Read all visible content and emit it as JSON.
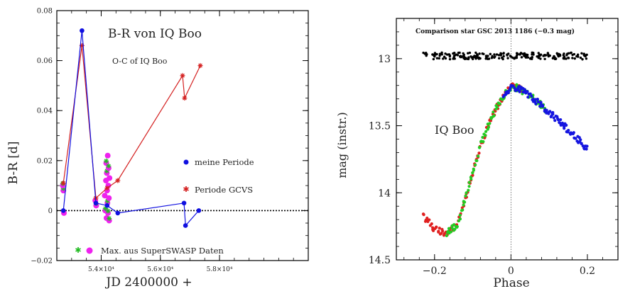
{
  "chart_data": [
    {
      "type": "scatter",
      "title": "B-R von IQ Boo",
      "subtitle": "O-C of IQ Boo",
      "xlabel": "JD 2400000 +",
      "ylabel": "B-R [d]",
      "xlim": [
        52500,
        61000
      ],
      "ylim": [
        -0.02,
        0.08
      ],
      "x_ticks": [
        54000,
        56000,
        58000
      ],
      "x_tick_labels": [
        "5.4×10⁴",
        "5.6×10⁴",
        "5.8×10⁴"
      ],
      "y_ticks": [
        -0.02,
        0,
        0.02,
        0.04,
        0.06,
        0.08
      ],
      "y_tick_labels": [
        "−0.02",
        "0",
        "0.02",
        "0.04",
        "0.06",
        "0.08"
      ],
      "zero_line": true,
      "legend_position": "right and bottom-left",
      "colors": {
        "blue": "#1010e0",
        "red": "#d42020",
        "green": "#22bb22",
        "magenta": "#ee22ee",
        "dark": "#202020"
      },
      "series": [
        {
          "name": "meine Periode",
          "marker": "circle",
          "color": "#1010e0",
          "connected": true,
          "points": [
            [
              52720,
              0.0
            ],
            [
              53350,
              0.072
            ],
            [
              53820,
              0.003
            ],
            [
              54200,
              0.002
            ],
            [
              54560,
              -0.001
            ],
            [
              56800,
              0.003
            ],
            [
              56850,
              -0.006
            ],
            [
              57300,
              0.0
            ]
          ]
        },
        {
          "name": "Periode GCVS",
          "marker": "star",
          "color": "#d42020",
          "connected": true,
          "points": [
            [
              52720,
              0.011
            ],
            [
              53350,
              0.066
            ],
            [
              53820,
              0.005
            ],
            [
              54200,
              0.009
            ],
            [
              54560,
              0.012
            ],
            [
              56750,
              0.054
            ],
            [
              56820,
              0.045
            ],
            [
              57350,
              0.058
            ]
          ]
        },
        {
          "name": "Max. aus SuperSWASP Daten",
          "marker": "circle+star",
          "colors": [
            "#22bb22",
            "#ee22ee"
          ],
          "connected": false,
          "points": [
            [
              52720,
              0.008
            ],
            [
              52740,
              -0.001
            ],
            [
              52700,
              0.01
            ],
            [
              53800,
              0.004
            ],
            [
              53830,
              0.002
            ],
            [
              54120,
              0.006
            ],
            [
              54140,
              0.0
            ],
            [
              54160,
              0.012
            ],
            [
              54170,
              0.019
            ],
            [
              54180,
              -0.003
            ],
            [
              54190,
              0.015
            ],
            [
              54200,
              0.008
            ],
            [
              54210,
              0.003
            ],
            [
              54220,
              0.022
            ],
            [
              54230,
              -0.001
            ],
            [
              54240,
              0.01
            ],
            [
              54250,
              0.017
            ],
            [
              54260,
              0.005
            ],
            [
              54270,
              -0.004
            ],
            [
              54280,
              0.013
            ]
          ]
        }
      ]
    },
    {
      "type": "scatter",
      "title": "Comparison star GSC 2013 1186 (−0.3 mag)",
      "annotation": "IQ Boo",
      "xlabel": "Phase",
      "ylabel": "mag (instr.)",
      "xlim": [
        -0.3,
        0.28
      ],
      "ylim": [
        14.5,
        12.7
      ],
      "y_inverted": true,
      "x_ticks": [
        -0.2,
        0,
        0.2
      ],
      "x_tick_labels": [
        "−0.2",
        "0",
        "0.2"
      ],
      "y_ticks": [
        13,
        13.5,
        14,
        14.5
      ],
      "y_tick_labels": [
        "13",
        "13.5",
        "14",
        "14.5"
      ],
      "phase_zero_line": true,
      "colors": {
        "comparison": "#000000",
        "red": "#e02020",
        "green": "#22cc22",
        "blue": "#1515e0"
      },
      "series": [
        {
          "color": "#000000",
          "description_key": "comparison",
          "phase_range": [
            -0.23,
            0.2
          ],
          "mag_mean": 12.98,
          "mag_scatter": 0.025
        },
        {
          "color": "#e02020",
          "phase_range": [
            -0.23,
            0.03
          ],
          "shape": "light-curve"
        },
        {
          "color": "#22cc22",
          "phase_range": [
            -0.17,
            0.09
          ],
          "shape": "light-curve"
        },
        {
          "color": "#1515e0",
          "phase_range": [
            -0.02,
            0.2
          ],
          "shape": "light-curve"
        }
      ],
      "shape_points": [
        [
          -0.23,
          14.17
        ],
        [
          -0.2,
          14.27
        ],
        [
          -0.17,
          14.3
        ],
        [
          -0.14,
          14.24
        ],
        [
          -0.12,
          14.05
        ],
        [
          -0.1,
          13.85
        ],
        [
          -0.08,
          13.65
        ],
        [
          -0.06,
          13.5
        ],
        [
          -0.04,
          13.38
        ],
        [
          -0.02,
          13.28
        ],
        [
          0.0,
          13.21
        ],
        [
          0.02,
          13.22
        ],
        [
          0.05,
          13.28
        ],
        [
          0.08,
          13.35
        ],
        [
          0.12,
          13.45
        ],
        [
          0.16,
          13.56
        ],
        [
          0.2,
          13.67
        ]
      ]
    }
  ]
}
